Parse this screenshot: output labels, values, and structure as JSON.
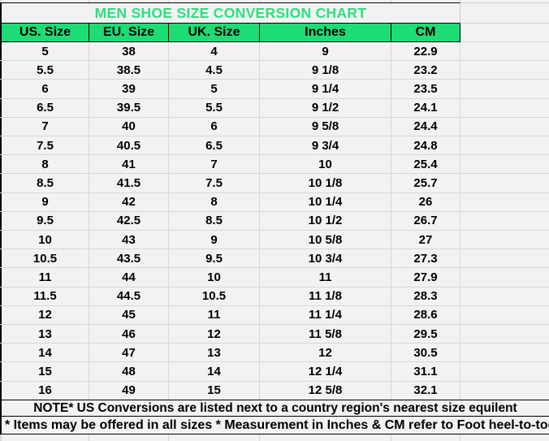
{
  "title": "MEN SHOE SIZE CONVERSION CHART",
  "notes": {
    "note1": "NOTE* US Conversions are listed next to a country region's nearest size equilent",
    "note2": "* Items may be offered in all sizes * Measurement in Inches & CM refer to Foot heel-to-toe"
  },
  "colors": {
    "header_fill": "#1EDC75",
    "title_text": "#2CE07E",
    "cell_background": "#F2F2F2",
    "grid_line": "#D7D7D7",
    "table_border": "#000000",
    "text": "#000000"
  },
  "chart_data": {
    "type": "table",
    "title": "MEN SHOE SIZE CONVERSION CHART",
    "columns": [
      "US. Size",
      "EU. Size",
      "UK. Size",
      "Inches",
      "CM"
    ],
    "rows": [
      [
        "5",
        "38",
        "4",
        "9",
        "22.9"
      ],
      [
        "5.5",
        "38.5",
        "4.5",
        "9 1/8",
        "23.2"
      ],
      [
        "6",
        "39",
        "5",
        "9 1/4",
        "23.5"
      ],
      [
        "6.5",
        "39.5",
        "5.5",
        "9 1/2",
        "24.1"
      ],
      [
        "7",
        "40",
        "6",
        "9 5/8",
        "24.4"
      ],
      [
        "7.5",
        "40.5",
        "6.5",
        "9 3/4",
        "24.8"
      ],
      [
        "8",
        "41",
        "7",
        "10",
        "25.4"
      ],
      [
        "8.5",
        "41.5",
        "7.5",
        "10 1/8",
        "25.7"
      ],
      [
        "9",
        "42",
        "8",
        "10 1/4",
        "26"
      ],
      [
        "9.5",
        "42.5",
        "8.5",
        "10 1/2",
        "26.7"
      ],
      [
        "10",
        "43",
        "9",
        "10 5/8",
        "27"
      ],
      [
        "10.5",
        "43.5",
        "9.5",
        "10 3/4",
        "27.3"
      ],
      [
        "11",
        "44",
        "10",
        "11",
        "27.9"
      ],
      [
        "11.5",
        "44.5",
        "10.5",
        "11 1/8",
        "28.3"
      ],
      [
        "12",
        "45",
        "11",
        "11 1/4",
        "28.6"
      ],
      [
        "13",
        "46",
        "12",
        "11 5/8",
        "29.5"
      ],
      [
        "14",
        "47",
        "13",
        "12",
        "30.5"
      ],
      [
        "15",
        "48",
        "14",
        "12 1/4",
        "31.1"
      ],
      [
        "16",
        "49",
        "15",
        "12 5/8",
        "32.1"
      ]
    ],
    "layout": {
      "grid": true,
      "header_position": "top",
      "title_position": "top-center"
    }
  }
}
